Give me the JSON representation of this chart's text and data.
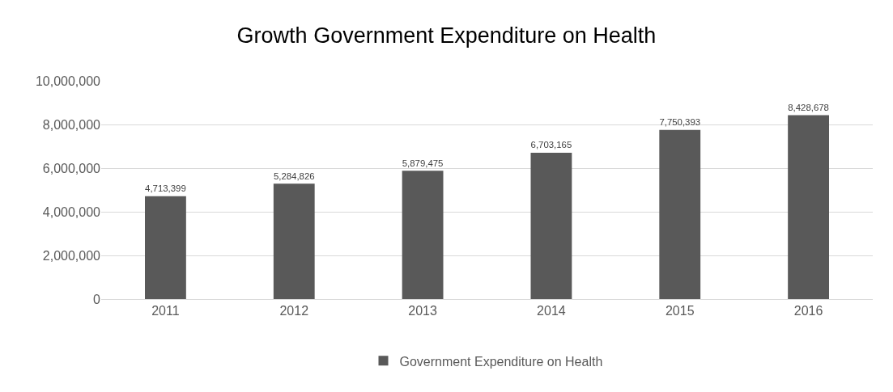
{
  "chart_data": {
    "type": "bar",
    "title": "Growth Government Expenditure on Health",
    "categories": [
      "2011",
      "2012",
      "2013",
      "2014",
      "2015",
      "2016"
    ],
    "series": [
      {
        "name": "Government Expenditure on Health",
        "color": "#595959",
        "values": [
          4713399,
          5284826,
          5879475,
          6703165,
          7750393,
          8428678
        ],
        "value_labels": [
          "4,713,399",
          "5,284,826",
          "5,879,475",
          "6,703,165",
          "7,750,393",
          "8,428,678"
        ]
      }
    ],
    "ylim": [
      0,
      10000000
    ],
    "yticks": [
      {
        "value": 0,
        "label": "0"
      },
      {
        "value": 2000000,
        "label": "2,000,000"
      },
      {
        "value": 4000000,
        "label": "4,000,000"
      },
      {
        "value": 6000000,
        "label": "6,000,000"
      },
      {
        "value": 8000000,
        "label": "8,000,000"
      },
      {
        "value": 10000000,
        "label": "10,000,000"
      }
    ],
    "grid": "y",
    "legend": "bottom"
  }
}
